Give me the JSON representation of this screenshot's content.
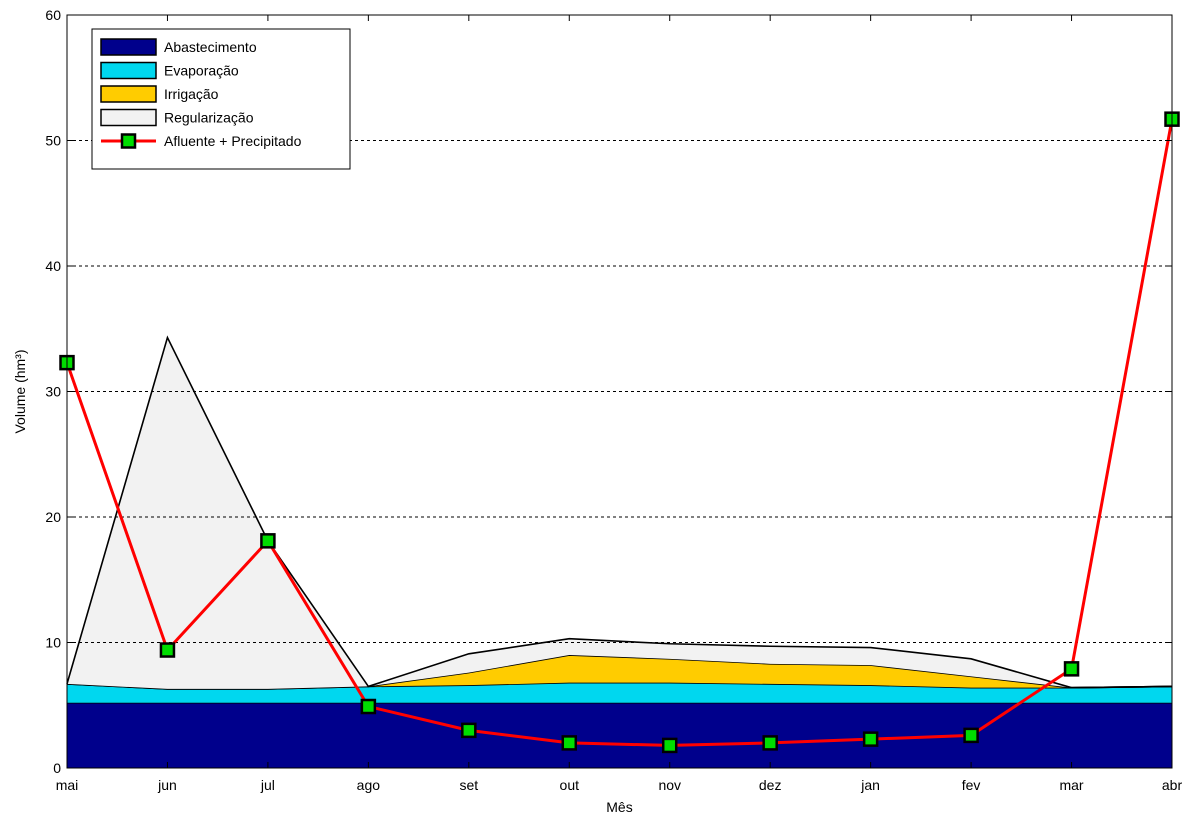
{
  "chart_data": {
    "type": "area",
    "xlabel": "Mês",
    "ylabel": "Volume (hm³)",
    "categories": [
      "mai",
      "jun",
      "jul",
      "ago",
      "set",
      "out",
      "nov",
      "dez",
      "jan",
      "fev",
      "mar",
      "abr"
    ],
    "ylim": [
      0,
      60
    ],
    "yticks": [
      0,
      10,
      20,
      30,
      40,
      50,
      60
    ],
    "grid": "horizontal dashed",
    "legend_position": "top-left",
    "stacked_series": [
      {
        "name": "Abastecimento",
        "color": "#00008c",
        "values": [
          5.2,
          5.2,
          5.2,
          5.2,
          5.2,
          5.2,
          5.2,
          5.2,
          5.2,
          5.2,
          5.2,
          5.2
        ]
      },
      {
        "name": "Evaporação",
        "color": "#00d7ef",
        "values": [
          1.5,
          1.1,
          1.1,
          1.3,
          1.4,
          1.6,
          1.6,
          1.5,
          1.4,
          1.2,
          1.2,
          1.3
        ]
      },
      {
        "name": "Irrigação",
        "color": "#ffcc00",
        "values": [
          0,
          0,
          0,
          0,
          1.0,
          2.2,
          1.9,
          1.6,
          1.6,
          0.9,
          0,
          0
        ]
      },
      {
        "name": "Regularização",
        "color": "#f2f2f2",
        "values": [
          0,
          28.0,
          11.8,
          0,
          1.5,
          1.3,
          1.2,
          1.4,
          1.4,
          1.4,
          0,
          0
        ]
      }
    ],
    "line_series": {
      "name": "Afluente + Precipitado",
      "color": "#ff0000",
      "marker_color": "#00dd00",
      "values": [
        32.3,
        9.4,
        18.1,
        4.9,
        3.0,
        2.0,
        1.8,
        2.0,
        2.3,
        2.6,
        7.9,
        51.7
      ]
    }
  }
}
